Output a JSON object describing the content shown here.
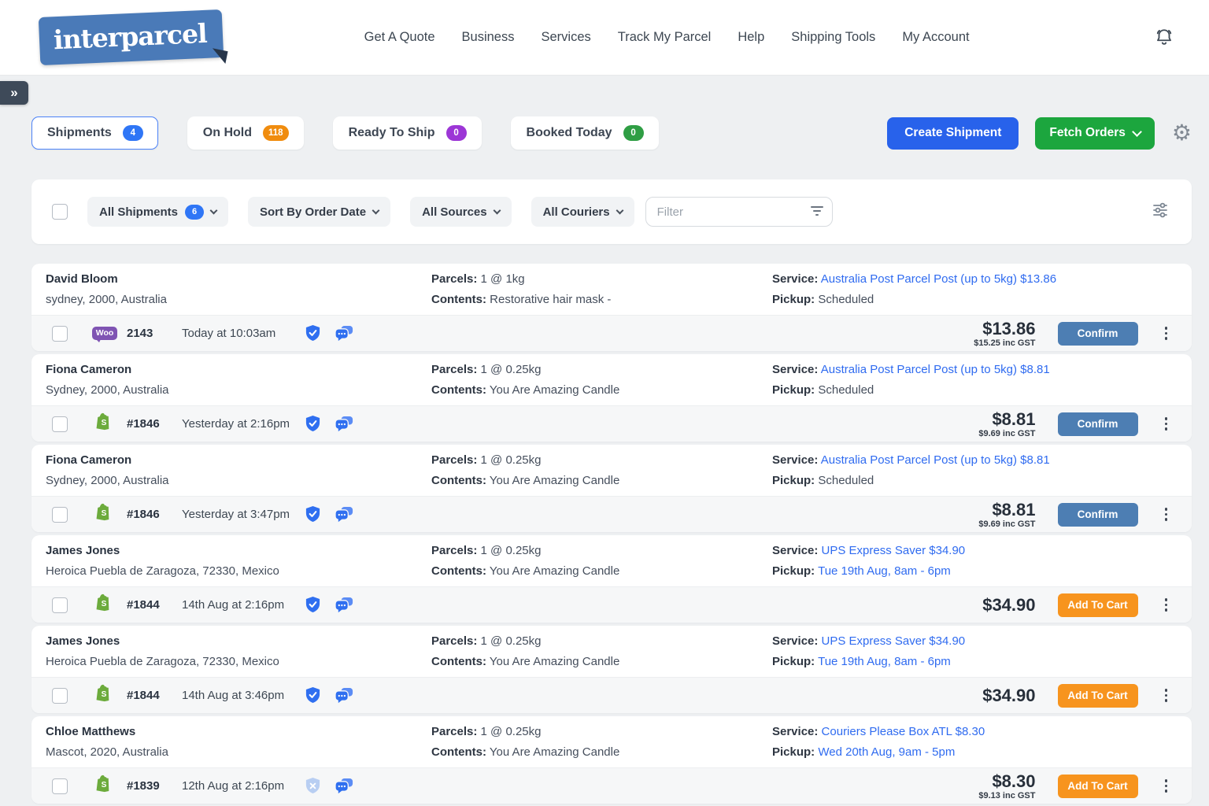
{
  "header": {
    "logo_text": "interparcel",
    "nav_items": [
      "Get A Quote",
      "Business",
      "Services",
      "Track My Parcel",
      "Help",
      "Shipping Tools",
      "My Account"
    ]
  },
  "tabs": [
    {
      "label": "Shipments",
      "count": "4",
      "badge_color": "#2F76F6",
      "active": true
    },
    {
      "label": "On Hold",
      "count": "118",
      "badge_color": "#F08C0E",
      "active": false
    },
    {
      "label": "Ready To Ship",
      "count": "0",
      "badge_color": "#9C36D6",
      "active": false
    },
    {
      "label": "Booked Today",
      "count": "0",
      "badge_color": "#2F9E44",
      "active": false
    }
  ],
  "toolbar": {
    "create_shipment_label": "Create Shipment",
    "fetch_orders_label": "Fetch Orders"
  },
  "filter_bar": {
    "shipments_filter": {
      "label": "All Shipments",
      "count": "6"
    },
    "sort_filter": {
      "label": "Sort By Order Date"
    },
    "source_filter": {
      "label": "All Sources"
    },
    "courier_filter": {
      "label": "All Couriers"
    },
    "filter_placeholder": "Filter"
  },
  "labels": {
    "parcels": "Parcels:",
    "contents": "Contents:",
    "service": "Service:",
    "pickup": "Pickup:"
  },
  "icons": {
    "woocommerce_badge_text": "Woo",
    "shopify_letter": "S"
  },
  "colors": {
    "create_button": "#2862EB",
    "fetch_button": "#1CA63E",
    "confirm_button": "#4D7EB3",
    "cart_button": "#F7941E",
    "service_link": "#2F6BF0",
    "logo_blue": "#4A7AB8"
  },
  "shipments": [
    {
      "name": "David Bloom",
      "address": "sydney, 2000, Australia",
      "parcels": "1 @ 1kg",
      "contents": "Restorative hair mask -",
      "service": "Australia Post Parcel Post (up to 5kg) $13.86",
      "pickup": "Scheduled",
      "pickup_link": false,
      "source": "woocommerce",
      "order_no": "2143",
      "date": "Today at 10:03am",
      "protected": true,
      "price": "$13.86",
      "price_sub": "$15.25 inc GST",
      "action_label": "Confirm",
      "action_type": "confirm"
    },
    {
      "name": "Fiona Cameron",
      "address": "Sydney, 2000, Australia",
      "parcels": "1 @ 0.25kg",
      "contents": "You Are Amazing Candle",
      "service": "Australia Post Parcel Post (up to 5kg) $8.81",
      "pickup": "Scheduled",
      "pickup_link": false,
      "source": "shopify",
      "order_no": "#1846",
      "date": "Yesterday at 2:16pm",
      "protected": true,
      "price": "$8.81",
      "price_sub": "$9.69 inc GST",
      "action_label": "Confirm",
      "action_type": "confirm"
    },
    {
      "name": "Fiona Cameron",
      "address": "Sydney, 2000, Australia",
      "parcels": "1 @ 0.25kg",
      "contents": "You Are Amazing Candle",
      "service": "Australia Post Parcel Post (up to 5kg) $8.81",
      "pickup": "Scheduled",
      "pickup_link": false,
      "source": "shopify",
      "order_no": "#1846",
      "date": "Yesterday at 3:47pm",
      "protected": true,
      "price": "$8.81",
      "price_sub": "$9.69 inc GST",
      "action_label": "Confirm",
      "action_type": "confirm"
    },
    {
      "name": "James Jones",
      "address": "Heroica Puebla de Zaragoza, 72330, Mexico",
      "parcels": "1 @ 0.25kg",
      "contents": "You Are Amazing Candle",
      "service": "UPS Express Saver $34.90",
      "pickup": "Tue 19th Aug, 8am - 6pm",
      "pickup_link": true,
      "source": "shopify",
      "order_no": "#1844",
      "date": "14th Aug at 2:16pm",
      "protected": true,
      "price": "$34.90",
      "price_sub": null,
      "action_label": "Add To Cart",
      "action_type": "cart"
    },
    {
      "name": "James Jones",
      "address": "Heroica Puebla de Zaragoza, 72330, Mexico",
      "parcels": "1 @ 0.25kg",
      "contents": "You Are Amazing Candle",
      "service": "UPS Express Saver $34.90",
      "pickup": "Tue 19th Aug, 8am - 6pm",
      "pickup_link": true,
      "source": "shopify",
      "order_no": "#1844",
      "date": "14th Aug at 3:46pm",
      "protected": true,
      "price": "$34.90",
      "price_sub": null,
      "action_label": "Add To Cart",
      "action_type": "cart"
    },
    {
      "name": "Chloe Matthews",
      "address": "Mascot, 2020, Australia",
      "parcels": "1 @ 0.25kg",
      "contents": "You Are Amazing Candle",
      "service": "Couriers Please Box ATL $8.30",
      "pickup": "Wed 20th Aug, 9am - 5pm",
      "pickup_link": true,
      "source": "shopify",
      "order_no": "#1839",
      "date": "12th Aug at 2:16pm",
      "protected": false,
      "price": "$8.30",
      "price_sub": "$9.13 inc GST",
      "action_label": "Add To Cart",
      "action_type": "cart"
    }
  ]
}
